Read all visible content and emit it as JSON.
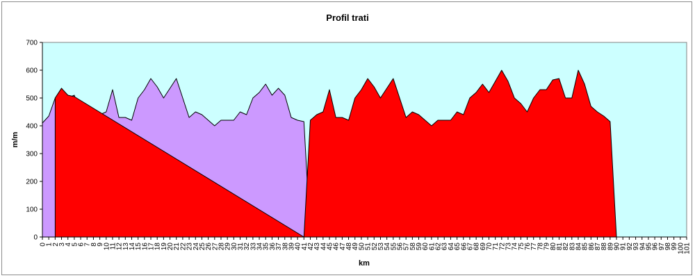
{
  "chart_data": {
    "type": "area",
    "title": "Profil trati",
    "xlabel": "km",
    "ylabel": "m/m",
    "ylim": [
      0,
      700
    ],
    "yticks": [
      0,
      100,
      200,
      300,
      400,
      500,
      600,
      700
    ],
    "grid": false,
    "legend": "none",
    "plot_background": "#ccffff",
    "x_tick_labels": [
      "0",
      "1",
      "2",
      "3",
      "4",
      "5",
      "6",
      "7",
      "8",
      "9",
      "10",
      "11",
      "12",
      "13",
      "14",
      "15",
      "16",
      "17",
      "18",
      "19",
      "20",
      "21",
      "22",
      "23",
      "24",
      "25",
      "26",
      "27",
      "28",
      "29",
      "30",
      "31",
      "32",
      "33",
      "34",
      "35",
      "36",
      "37",
      "38",
      "39",
      "40",
      "41",
      "42",
      "43",
      "44",
      "45",
      "46",
      "47",
      "48",
      "49",
      "50",
      "51",
      "52",
      "53",
      "54",
      "55",
      "56",
      "57",
      "58",
      "59",
      "60",
      "61",
      "62",
      "63",
      "64",
      "65",
      "66",
      "67",
      "68",
      "69",
      "70",
      "71",
      "72",
      "73",
      "74",
      "75",
      "76",
      "77",
      "78",
      "79",
      "80",
      "81",
      "82",
      "83",
      "84",
      "85",
      "86",
      "87",
      "88",
      "89",
      "90",
      "91",
      "92",
      "93",
      "94",
      "95",
      "96",
      "97",
      "98",
      "99",
      "100",
      "101"
    ],
    "series": [
      {
        "color": "#cc99ff",
        "x": [
          0,
          1,
          2,
          3,
          4,
          5,
          6,
          7,
          8,
          9,
          10,
          11,
          12,
          13,
          14,
          15,
          16,
          17,
          18,
          19,
          20,
          21,
          22,
          23,
          24,
          25,
          26,
          27,
          28,
          29,
          30,
          31,
          32,
          33,
          34,
          35,
          36,
          37,
          38,
          39,
          40,
          41,
          42,
          43
        ],
        "values": [
          410,
          435,
          500,
          535,
          500,
          510,
          445,
          420,
          425,
          440,
          450,
          530,
          430,
          430,
          420,
          500,
          530,
          570,
          540,
          500,
          535,
          570,
          500,
          430,
          450,
          440,
          420,
          400,
          420,
          420,
          420,
          450,
          440,
          500,
          520,
          550,
          510,
          535,
          510,
          430,
          420,
          415,
          0,
          0
        ]
      },
      {
        "color": "#ff0000",
        "x": [
          2,
          3,
          4,
          5,
          41,
          42,
          43,
          44,
          45,
          46,
          47,
          48,
          49,
          50,
          51,
          52,
          53,
          54,
          55,
          56,
          57,
          58,
          59,
          60,
          61,
          62,
          63,
          64,
          65,
          66,
          67,
          68,
          69,
          70,
          71,
          72,
          73,
          74,
          75,
          76,
          77,
          78,
          79,
          80,
          81,
          82,
          83,
          84,
          85,
          86,
          87,
          88,
          89,
          90,
          91,
          92,
          93,
          94,
          95,
          96,
          97
        ],
        "values": [
          500,
          535,
          510,
          505,
          0,
          420,
          440,
          450,
          530,
          430,
          430,
          420,
          500,
          530,
          570,
          540,
          500,
          535,
          570,
          500,
          430,
          450,
          440,
          420,
          400,
          420,
          420,
          420,
          450,
          440,
          500,
          520,
          550,
          520,
          560,
          600,
          560,
          500,
          480,
          450,
          500,
          530,
          530,
          565,
          570,
          500,
          500,
          600,
          550,
          470,
          450,
          435,
          415,
          0,
          0,
          0,
          0,
          0,
          0,
          0,
          0
        ]
      }
    ]
  }
}
